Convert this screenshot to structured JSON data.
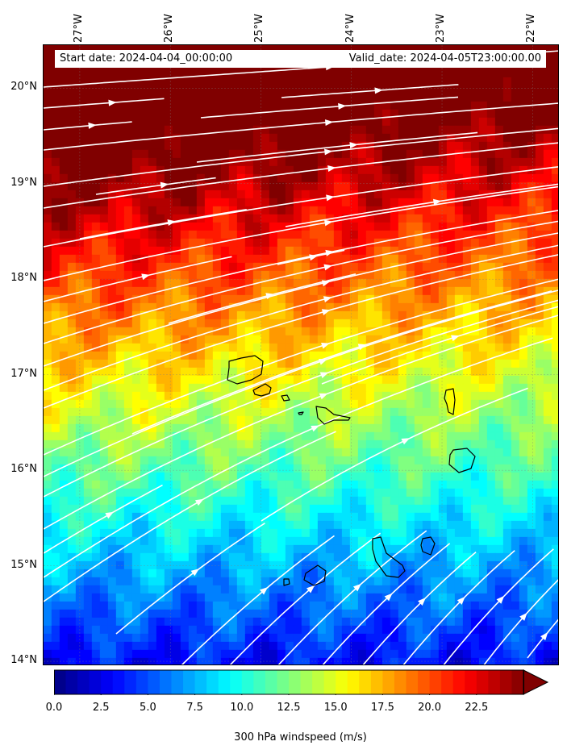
{
  "map": {
    "start_date": "Start date: 2024-04-04_00:00:00",
    "valid_date": "Valid_date: 2024-04-05T23:00:00.00",
    "lon_ticks": [
      "27°W",
      "26°W",
      "25°W",
      "24°W",
      "23°W",
      "22°W"
    ],
    "lat_ticks": [
      "20°N",
      "19°N",
      "18°N",
      "17°N",
      "16°N",
      "15°N",
      "14°N"
    ],
    "extent": {
      "lon_min": -27.4,
      "lon_max": -21.7,
      "lat_min": 13.95,
      "lat_max": 20.45
    },
    "field": "300 hPa windspeed",
    "streamline_color": "#ffffff",
    "coastline_color": "#000000"
  },
  "colorbar": {
    "label": "300 hPa windspeed (m/s)",
    "ticks": [
      "0.0",
      "2.5",
      "5.0",
      "7.5",
      "10.0",
      "12.5",
      "15.0",
      "17.5",
      "20.0",
      "22.5"
    ],
    "min": 0,
    "max": 25,
    "colormap": "jet",
    "extend": "max"
  }
}
